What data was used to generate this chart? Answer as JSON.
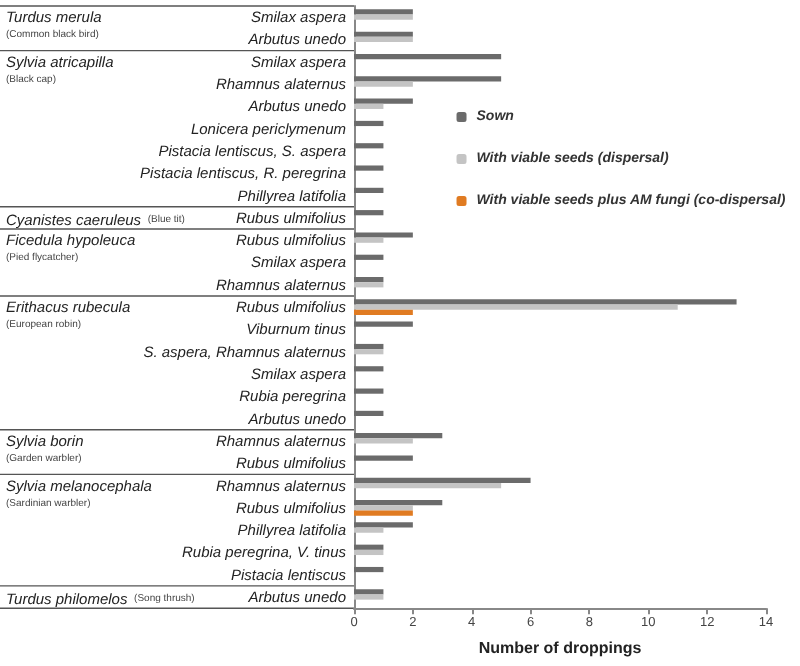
{
  "chart_data": {
    "type": "bar",
    "orientation": "horizontal",
    "xlabel": "Number of droppings",
    "categories": [
      "Smilax aspera",
      "Arbutus unedo",
      "Smilax aspera",
      "Rhamnus alaternus",
      "Arbutus unedo",
      "Lonicera periclymenum",
      "Pistacia lentiscus, S. aspera",
      "Pistacia lentiscus, R. peregrina",
      "Phillyrea latifolia",
      "Rubus ulmifolius",
      "Rubus ulmifolius",
      "Smilax aspera",
      "Rhamnus alaternus",
      "Rubus ulmifolius",
      "Viburnum tinus",
      "S. aspera, Rhamnus alaternus",
      "Smilax aspera",
      "Rubia peregrina",
      "Arbutus unedo",
      "Rhamnus alaternus",
      "Rubus ulmifolius",
      "Rhamnus alaternus",
      "Rubus ulmifolius",
      "Phillyrea latifolia",
      "Rubia peregrina, V. tinus",
      "Pistacia lentiscus",
      "Arbutus unedo"
    ],
    "y2_categories": [
      "Turdus merula (Common black bird)",
      null,
      "Sylvia atricapilla (Black cap)",
      null,
      null,
      null,
      null,
      null,
      null,
      "Cyanistes caeruleus (Blue tit)",
      "Ficedula hypoleuca (Pied flycatcher)",
      null,
      null,
      "Erithacus rubecula (European robin)",
      null,
      null,
      null,
      null,
      null,
      "Sylvia borin (Garden warbler)",
      null,
      "Sylvia melanocephala (Sardinian warbler)",
      null,
      null,
      null,
      null,
      "Turdus philomelos (Song thrush)"
    ],
    "series": [
      {
        "name": "Sown",
        "color": "#6b6b6b",
        "values": [
          2,
          2,
          5,
          5,
          2,
          1,
          1,
          1,
          1,
          1,
          2,
          1,
          1,
          13,
          2,
          1,
          1,
          1,
          1,
          3,
          2,
          6,
          3,
          2,
          1,
          1,
          1
        ]
      },
      {
        "name": "With viable seeds (dispersal)",
        "color": "#c4c4c4",
        "values": [
          2,
          2,
          0,
          2,
          1,
          0,
          0,
          0,
          0,
          0,
          1,
          0,
          1,
          11,
          0,
          1,
          0,
          0,
          0,
          2,
          0,
          5,
          2,
          1,
          1,
          0,
          1
        ]
      },
      {
        "name": "With viable seeds plus AM fungi (co-dispersal)",
        "color": "#e07b22",
        "values": [
          0,
          0,
          0,
          0,
          0,
          0,
          0,
          0,
          0,
          0,
          0,
          0,
          0,
          2,
          0,
          0,
          0,
          0,
          0,
          0,
          0,
          0,
          2,
          0,
          0,
          0,
          0
        ]
      }
    ],
    "xlim": [
      0,
      14
    ],
    "xticks": [
      0,
      2,
      4,
      6,
      8,
      10,
      12,
      14
    ],
    "grid": false,
    "legend": "top right"
  }
}
